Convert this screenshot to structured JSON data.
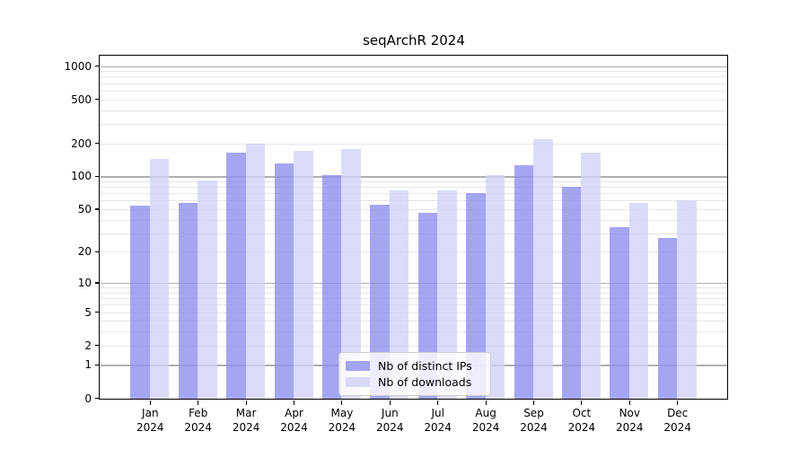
{
  "title": "seqArchR 2024",
  "chart_data": {
    "type": "bar",
    "title": "seqArchR 2024",
    "scale": "log1p",
    "categories": [
      "Jan",
      "Feb",
      "Mar",
      "Apr",
      "May",
      "Jun",
      "Jul",
      "Aug",
      "Sep",
      "Oct",
      "Nov",
      "Dec"
    ],
    "year": "2024",
    "series": [
      {
        "name": "Nb of distinct IPs",
        "color": "#8f8ff0",
        "values": [
          54,
          57,
          165,
          132,
          102,
          55,
          46,
          70,
          127,
          80,
          34,
          27
        ]
      },
      {
        "name": "Nb of downloads",
        "color": "#d2d2f8",
        "values": [
          143,
          92,
          200,
          170,
          177,
          75,
          75,
          103,
          216,
          163,
          57,
          60
        ]
      }
    ],
    "yticks": [
      0,
      1,
      2,
      5,
      10,
      20,
      50,
      100,
      200,
      500,
      1000
    ],
    "ylim": [
      0,
      1250
    ],
    "xlabel": "",
    "ylabel": "",
    "grid": "on",
    "legend_position": "lower center"
  },
  "colors": {
    "bar_distinct_ips": "#a3a3f0",
    "bar_downloads": "#d9d9f7",
    "grid_major": "#b0b0b0",
    "grid_minor": "#e6e6e6",
    "axis": "#000000",
    "background": "#ffffff"
  }
}
